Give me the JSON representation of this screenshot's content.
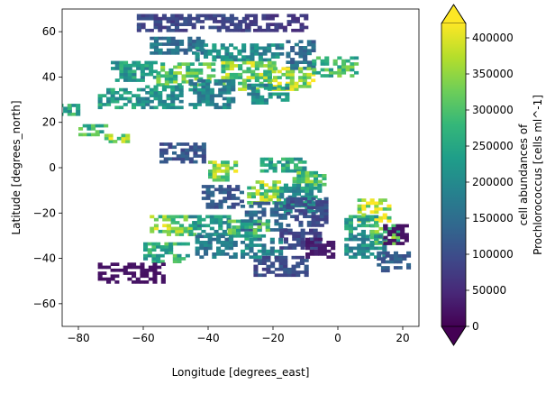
{
  "chart_data": {
    "type": "heatmap",
    "title": "",
    "xlabel": "Longitude [degrees_east]",
    "ylabel": "Latitude [degrees_north]",
    "xlim": [
      -85,
      25
    ],
    "ylim": [
      -70,
      70
    ],
    "x_ticks": [
      -80,
      -60,
      -40,
      -20,
      0,
      20
    ],
    "x_tick_labels": [
      "−80",
      "−60",
      "−40",
      "−20",
      "0",
      "20"
    ],
    "y_ticks": [
      -60,
      -40,
      -20,
      0,
      20,
      40,
      60
    ],
    "y_tick_labels": [
      "−60",
      "−40",
      "−20",
      "0",
      "20",
      "40",
      "60"
    ],
    "grid": false,
    "colormap": "viridis",
    "colormap_colors": [
      "#440154",
      "#482878",
      "#3e4989",
      "#31688e",
      "#26828e",
      "#1f9e89",
      "#35b779",
      "#6ece58",
      "#b5de2b",
      "#fde725"
    ],
    "colorbar": {
      "label_line1": "cell abundances of",
      "label_line2": "Prochlorococcus [cells ml^-1]",
      "range": [
        0,
        420000
      ],
      "ticks": [
        0,
        50000,
        100000,
        150000,
        200000,
        250000,
        300000,
        350000,
        400000
      ],
      "tick_labels": [
        "0",
        "50000",
        "100000",
        "150000",
        "200000",
        "250000",
        "300000",
        "350000",
        "400000"
      ],
      "extend": "both"
    },
    "regions": [
      {
        "lon": [
          -62,
          -28
        ],
        "lat": [
          60,
          67
        ],
        "value": 90000
      },
      {
        "lon": [
          -30,
          -10
        ],
        "lat": [
          60,
          67
        ],
        "value": 70000
      },
      {
        "lon": [
          -58,
          -42
        ],
        "lat": [
          50,
          57
        ],
        "value": 160000
      },
      {
        "lon": [
          -44,
          -18
        ],
        "lat": [
          47,
          54
        ],
        "value": 200000
      },
      {
        "lon": [
          -16,
          -8
        ],
        "lat": [
          42,
          55
        ],
        "value": 150000
      },
      {
        "lon": [
          -70,
          -56
        ],
        "lat": [
          38,
          46
        ],
        "value": 230000
      },
      {
        "lon": [
          -56,
          -38
        ],
        "lat": [
          36,
          46
        ],
        "value": 300000
      },
      {
        "lon": [
          -36,
          -20
        ],
        "lat": [
          34,
          46
        ],
        "value": 330000
      },
      {
        "lon": [
          -20,
          -8
        ],
        "lat": [
          34,
          44
        ],
        "value": 360000
      },
      {
        "lon": [
          -8,
          5
        ],
        "lat": [
          40,
          48
        ],
        "value": 280000
      },
      {
        "lon": [
          -74,
          -62
        ],
        "lat": [
          26,
          34
        ],
        "value": 230000
      },
      {
        "lon": [
          -62,
          -48
        ],
        "lat": [
          26,
          36
        ],
        "value": 210000
      },
      {
        "lon": [
          -46,
          -32
        ],
        "lat": [
          26,
          38
        ],
        "value": 190000
      },
      {
        "lon": [
          -28,
          -16
        ],
        "lat": [
          28,
          36
        ],
        "value": 200000
      },
      {
        "lon": [
          -86,
          -80
        ],
        "lat": [
          23,
          28
        ],
        "value": 250000
      },
      {
        "lon": [
          -80,
          -72
        ],
        "lat": [
          14,
          18
        ],
        "value": 280000
      },
      {
        "lon": [
          -72,
          -65
        ],
        "lat": [
          11,
          14
        ],
        "value": 350000
      },
      {
        "lon": [
          -55,
          -42
        ],
        "lat": [
          2,
          10
        ],
        "value": 110000
      },
      {
        "lon": [
          -40,
          -32
        ],
        "lat": [
          -6,
          2
        ],
        "value": 340000
      },
      {
        "lon": [
          -24,
          -10
        ],
        "lat": [
          -2,
          4
        ],
        "value": 240000
      },
      {
        "lon": [
          -14,
          -4
        ],
        "lat": [
          -8,
          -2
        ],
        "value": 300000
      },
      {
        "lon": [
          -28,
          -18
        ],
        "lat": [
          -16,
          -6
        ],
        "value": 330000
      },
      {
        "lon": [
          -18,
          -6
        ],
        "lat": [
          -20,
          -8
        ],
        "value": 220000
      },
      {
        "lon": [
          -42,
          -30
        ],
        "lat": [
          -18,
          -8
        ],
        "value": 120000
      },
      {
        "lon": [
          -30,
          -16
        ],
        "lat": [
          -28,
          -16
        ],
        "value": 140000
      },
      {
        "lon": [
          -16,
          -4
        ],
        "lat": [
          -26,
          -14
        ],
        "value": 100000
      },
      {
        "lon": [
          -58,
          -44
        ],
        "lat": [
          -30,
          -22
        ],
        "value": 330000
      },
      {
        "lon": [
          -46,
          -34
        ],
        "lat": [
          -30,
          -22
        ],
        "value": 220000
      },
      {
        "lon": [
          -34,
          -22
        ],
        "lat": [
          -32,
          -24
        ],
        "value": 280000
      },
      {
        "lon": [
          -60,
          -46
        ],
        "lat": [
          -42,
          -34
        ],
        "value": 270000
      },
      {
        "lon": [
          -44,
          -32
        ],
        "lat": [
          -40,
          -30
        ],
        "value": 170000
      },
      {
        "lon": [
          -30,
          -18
        ],
        "lat": [
          -40,
          -32
        ],
        "value": 190000
      },
      {
        "lon": [
          -18,
          -6
        ],
        "lat": [
          -36,
          -28
        ],
        "value": 90000
      },
      {
        "lon": [
          -74,
          -54
        ],
        "lat": [
          -51,
          -42
        ],
        "value": 20000
      },
      {
        "lon": [
          -26,
          -10
        ],
        "lat": [
          -48,
          -40
        ],
        "value": 100000
      },
      {
        "lon": [
          -10,
          -2
        ],
        "lat": [
          -40,
          -32
        ],
        "value": 30000
      },
      {
        "lon": [
          6,
          16
        ],
        "lat": [
          -24,
          -14
        ],
        "value": 380000
      },
      {
        "lon": [
          2,
          12
        ],
        "lat": [
          -30,
          -22
        ],
        "value": 240000
      },
      {
        "lon": [
          10,
          18
        ],
        "lat": [
          -34,
          -26
        ],
        "value": 300000
      },
      {
        "lon": [
          2,
          14
        ],
        "lat": [
          -40,
          -30
        ],
        "value": 200000
      },
      {
        "lon": [
          12,
          22
        ],
        "lat": [
          -46,
          -38
        ],
        "value": 120000
      },
      {
        "lon": [
          14,
          21
        ],
        "lat": [
          -34,
          -26
        ],
        "value": 20000
      }
    ]
  }
}
